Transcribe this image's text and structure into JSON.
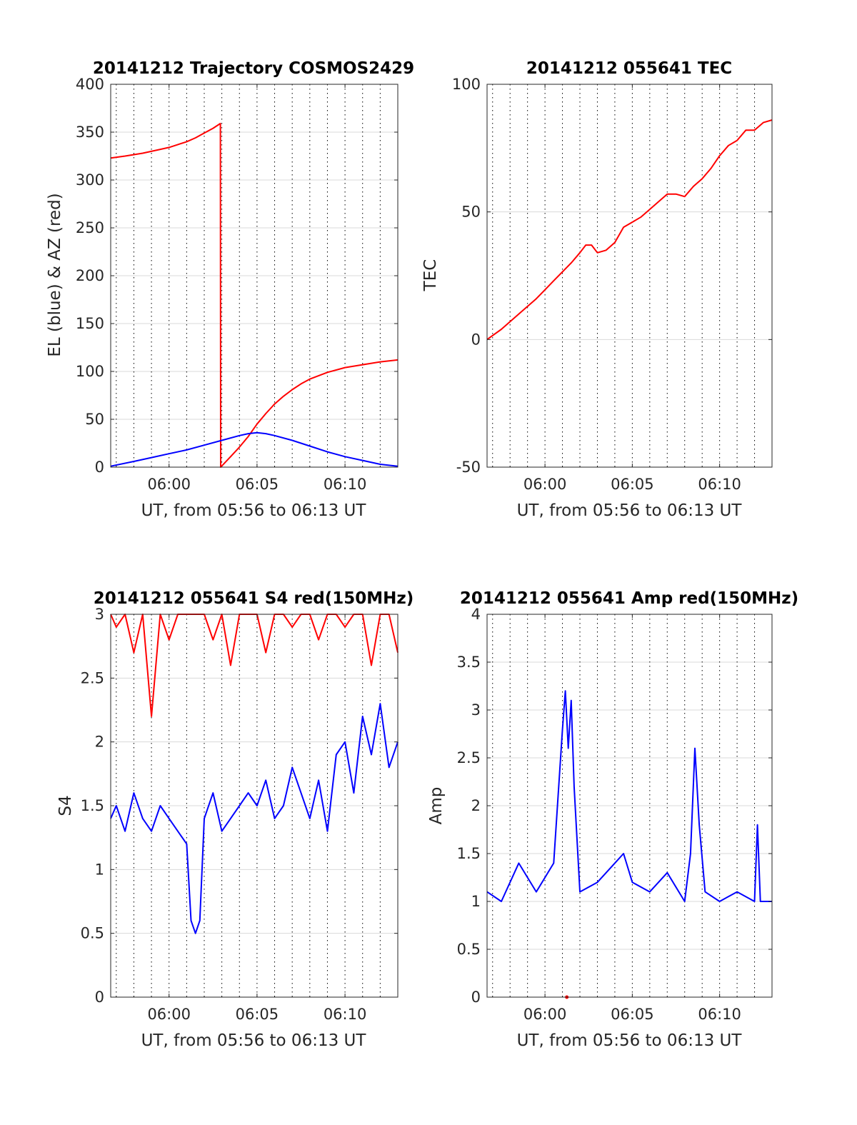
{
  "figure": {
    "background": "#ffffff"
  },
  "colors": {
    "red": "#ff0000",
    "blue": "#0000ff",
    "grid": "#d9d9d9",
    "axis": "#262626"
  },
  "chart_data": [
    {
      "type": "line",
      "title": "20141212 Trajectory COSMOS2429",
      "xlabel": "UT, from 05:56 to 06:13 UT",
      "ylabel": "EL (blue) & AZ (red)",
      "xlim": [
        "05:56:41",
        "06:13:00"
      ],
      "ylim": [
        0,
        400
      ],
      "xticks": [
        "06:00",
        "06:05",
        "06:10"
      ],
      "yticks": [
        0,
        50,
        100,
        150,
        200,
        250,
        300,
        350,
        400
      ],
      "grid": "on",
      "series": [
        {
          "color": "#ff0000",
          "x": [
            "05:56:41",
            "05:57:30",
            "05:58:30",
            "05:59:30",
            "06:00:00",
            "06:00:30",
            "06:01:00",
            "06:01:30",
            "06:02:00",
            "06:02:30",
            "06:02:55",
            "06:02:56",
            "06:03:30",
            "06:04:00",
            "06:04:30",
            "06:05:00",
            "06:05:30",
            "06:06:00",
            "06:06:30",
            "06:07:00",
            "06:07:30",
            "06:08:00",
            "06:09:00",
            "06:10:00",
            "06:11:00",
            "06:12:00",
            "06:13:00"
          ],
          "values": [
            323,
            325,
            328,
            332,
            334,
            337,
            340,
            344,
            349,
            354,
            359,
            0,
            11,
            21,
            32,
            45,
            56,
            66,
            74,
            81,
            87,
            92,
            99,
            104,
            107,
            110,
            112
          ]
        },
        {
          "color": "#0000ff",
          "x": [
            "05:56:41",
            "05:58:00",
            "05:59:00",
            "06:00:00",
            "06:01:00",
            "06:02:00",
            "06:03:00",
            "06:04:00",
            "06:04:30",
            "06:05:00",
            "06:05:30",
            "06:06:00",
            "06:07:00",
            "06:08:00",
            "06:09:00",
            "06:10:00",
            "06:11:00",
            "06:12:00",
            "06:13:00"
          ],
          "values": [
            1,
            6,
            10,
            14,
            18,
            23,
            28,
            33,
            35,
            36,
            35,
            33,
            28,
            22,
            16,
            11,
            7,
            3,
            1
          ]
        }
      ]
    },
    {
      "type": "line",
      "title": "20141212 055641 TEC",
      "xlabel": "UT, from 05:56 to 06:13 UT",
      "ylabel": "TEC",
      "xlim": [
        "05:56:41",
        "06:13:00"
      ],
      "ylim": [
        -50,
        100
      ],
      "xticks": [
        "06:00",
        "06:05",
        "06:10"
      ],
      "yticks": [
        -50,
        0,
        50,
        100
      ],
      "grid": "on",
      "series": [
        {
          "color": "#ff0000",
          "x": [
            "05:56:41",
            "05:57:30",
            "05:58:30",
            "05:59:30",
            "06:00:30",
            "06:01:30",
            "06:02:00",
            "06:02:20",
            "06:02:40",
            "06:03:00",
            "06:03:30",
            "06:04:00",
            "06:04:30",
            "06:05:00",
            "06:05:30",
            "06:06:00",
            "06:06:30",
            "06:07:00",
            "06:07:30",
            "06:08:00",
            "06:08:30",
            "06:09:00",
            "06:09:30",
            "06:10:00",
            "06:10:30",
            "06:11:00",
            "06:11:30",
            "06:12:00",
            "06:12:30",
            "06:13:00"
          ],
          "values": [
            0,
            4,
            10,
            16,
            23,
            30,
            34,
            37,
            37,
            34,
            35,
            38,
            44,
            46,
            48,
            51,
            54,
            57,
            57,
            56,
            60,
            63,
            67,
            72,
            76,
            78,
            82,
            82,
            85,
            86
          ]
        }
      ]
    },
    {
      "type": "line",
      "title": "20141212 055641 S4 red(150MHz)",
      "xlabel": "UT, from 05:56 to 06:13 UT",
      "ylabel": "S4",
      "xlim": [
        "05:56:41",
        "06:13:00"
      ],
      "ylim": [
        0,
        3
      ],
      "xticks": [
        "06:00",
        "06:05",
        "06:10"
      ],
      "yticks": [
        0,
        0.5,
        1,
        1.5,
        2,
        2.5,
        3
      ],
      "grid": "on",
      "series": [
        {
          "color": "#ff0000",
          "x": [
            "05:56:41",
            "05:57:00",
            "05:57:30",
            "05:58:00",
            "05:58:30",
            "05:59:00",
            "05:59:30",
            "06:00:00",
            "06:00:30",
            "06:01:00",
            "06:01:30",
            "06:02:00",
            "06:02:30",
            "06:03:00",
            "06:03:30",
            "06:04:00",
            "06:04:30",
            "06:05:00",
            "06:05:30",
            "06:06:00",
            "06:06:30",
            "06:07:00",
            "06:07:30",
            "06:08:00",
            "06:08:30",
            "06:09:00",
            "06:09:30",
            "06:10:00",
            "06:10:30",
            "06:11:00",
            "06:11:30",
            "06:12:00",
            "06:12:30",
            "06:13:00"
          ],
          "values": [
            3,
            2.9,
            3,
            2.7,
            3,
            2.2,
            3,
            2.8,
            3,
            3,
            3,
            3,
            2.8,
            3,
            2.6,
            3,
            3,
            3,
            2.7,
            3,
            3,
            2.9,
            3,
            3,
            2.8,
            3,
            3,
            2.9,
            3,
            3,
            2.6,
            3,
            3,
            2.7
          ]
        },
        {
          "color": "#0000ff",
          "x": [
            "05:56:41",
            "05:57:00",
            "05:57:30",
            "05:58:00",
            "05:58:30",
            "05:59:00",
            "05:59:30",
            "06:00:00",
            "06:00:30",
            "06:01:00",
            "06:01:15",
            "06:01:30",
            "06:01:45",
            "06:02:00",
            "06:02:30",
            "06:03:00",
            "06:03:30",
            "06:04:00",
            "06:04:30",
            "06:05:00",
            "06:05:30",
            "06:06:00",
            "06:06:30",
            "06:07:00",
            "06:07:30",
            "06:08:00",
            "06:08:30",
            "06:09:00",
            "06:09:30",
            "06:10:00",
            "06:10:30",
            "06:11:00",
            "06:11:30",
            "06:12:00",
            "06:12:30",
            "06:13:00"
          ],
          "values": [
            1.4,
            1.5,
            1.3,
            1.6,
            1.4,
            1.3,
            1.5,
            1.4,
            1.3,
            1.2,
            0.6,
            0.5,
            0.6,
            1.4,
            1.6,
            1.3,
            1.4,
            1.5,
            1.6,
            1.5,
            1.7,
            1.4,
            1.5,
            1.8,
            1.6,
            1.4,
            1.7,
            1.3,
            1.9,
            2.0,
            1.6,
            2.2,
            1.9,
            2.3,
            1.8,
            2.0
          ]
        }
      ]
    },
    {
      "type": "line",
      "title": "20141212 055641 Amp red(150MHz)",
      "xlabel": "UT, from 05:56 to 06:13 UT",
      "ylabel": "Amp",
      "xlim": [
        "05:56:41",
        "06:13:00"
      ],
      "ylim": [
        0,
        4
      ],
      "xticks": [
        "06:00",
        "06:05",
        "06:10"
      ],
      "yticks": [
        0,
        0.5,
        1,
        1.5,
        2,
        2.5,
        3,
        3.5,
        4
      ],
      "grid": "on",
      "series": [
        {
          "color": "#0000ff",
          "x": [
            "05:56:41",
            "05:57:30",
            "05:58:30",
            "05:59:30",
            "06:00:30",
            "06:01:00",
            "06:01:10",
            "06:01:20",
            "06:01:30",
            "06:01:40",
            "06:02:00",
            "06:03:00",
            "06:04:00",
            "06:04:30",
            "06:05:00",
            "06:06:00",
            "06:07:00",
            "06:08:00",
            "06:08:20",
            "06:08:35",
            "06:08:50",
            "06:09:10",
            "06:10:00",
            "06:11:00",
            "06:12:00",
            "06:12:10",
            "06:12:20",
            "06:13:00"
          ],
          "values": [
            1.1,
            1.0,
            1.4,
            1.1,
            1.4,
            2.8,
            3.2,
            2.6,
            3.1,
            2.2,
            1.1,
            1.2,
            1.4,
            1.5,
            1.2,
            1.1,
            1.3,
            1.0,
            1.5,
            2.6,
            1.8,
            1.1,
            1.0,
            1.1,
            1.0,
            1.8,
            1.0,
            1.0
          ]
        },
        {
          "color": "#ff0000",
          "x": [
            "06:01:15"
          ],
          "values": [
            0
          ]
        }
      ]
    }
  ]
}
